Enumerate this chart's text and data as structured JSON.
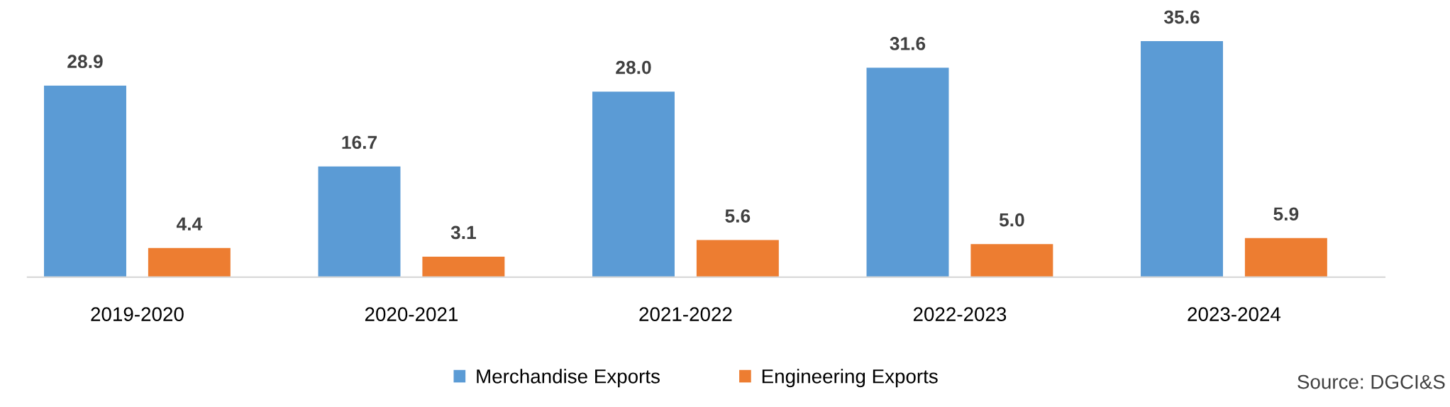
{
  "chart_data": {
    "type": "bar",
    "categories": [
      "2019-2020",
      "2020-2021",
      "2021-2022",
      "2022-2023",
      "2023-2024"
    ],
    "series": [
      {
        "name": "Merchandise Exports",
        "color": "#5b9bd5",
        "values": [
          28.9,
          16.7,
          28.0,
          31.6,
          35.6
        ],
        "value_labels": [
          "28.9",
          "16.7",
          "28.0",
          "31.6",
          "35.6"
        ]
      },
      {
        "name": "Engineering Exports",
        "color": "#ed7d31",
        "values": [
          4.4,
          3.1,
          5.6,
          5.0,
          5.9
        ],
        "value_labels": [
          "4.4",
          "3.1",
          "5.6",
          "5.0",
          "5.9"
        ]
      }
    ],
    "legend": "bottom",
    "grid": false,
    "annotations": [
      "Source: DGCI&S"
    ]
  }
}
